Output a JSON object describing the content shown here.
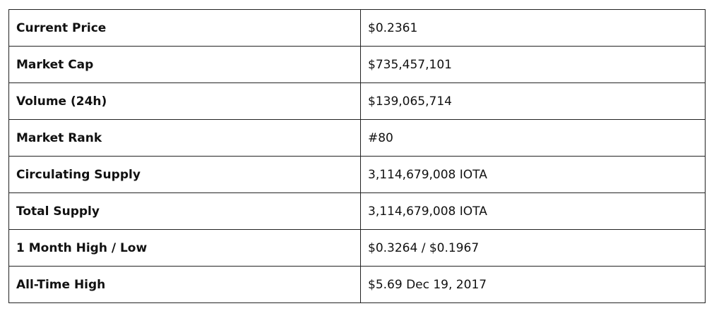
{
  "table": {
    "rows": [
      [
        "Current Price",
        "$0.2361"
      ],
      [
        "Market Cap",
        "$735,457,101"
      ],
      [
        "Volume (24h)",
        "$139,065,714"
      ],
      [
        "Market Rank",
        "#80"
      ],
      [
        "Circulating Supply",
        "3,114,679,008 IOTA"
      ],
      [
        "Total Supply",
        "3,114,679,008 IOTA"
      ],
      [
        "1 Month High / Low",
        "$0.3264 / $0.1967"
      ],
      [
        "All-Time High",
        "$5.69 Dec 19, 2017"
      ]
    ]
  }
}
